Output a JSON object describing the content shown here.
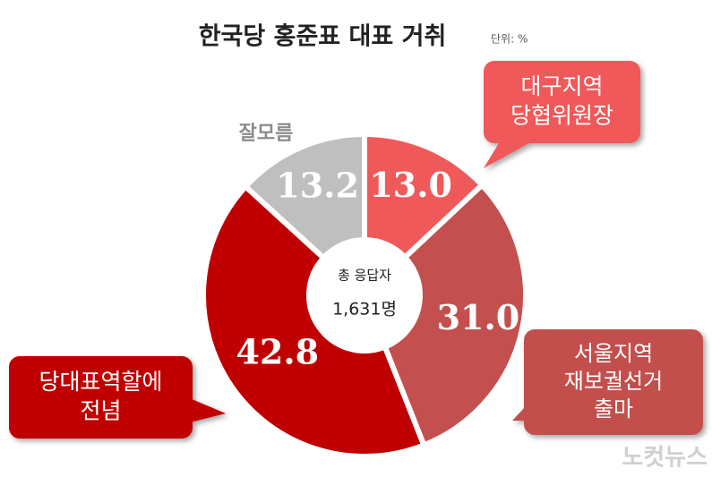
{
  "chart_data": {
    "type": "donut",
    "title": "한국당 홍준표 대표 거취",
    "unit": "단위: %",
    "categories": [
      "대구지역 당협위원장",
      "서울지역 재보궐선거 출마",
      "당대표역할에 전념",
      "잘모름"
    ],
    "values": [
      13.0,
      31.0,
      42.8,
      13.2
    ],
    "value_labels": [
      "13.0",
      "31.0",
      "42.8",
      "13.2"
    ],
    "colors": [
      "#f0595a",
      "#c3504e",
      "#c00000",
      "#bfbfbf"
    ],
    "center_label": [
      "총 응답자",
      "1,631명"
    ],
    "watermark": "노컷뉴스"
  }
}
